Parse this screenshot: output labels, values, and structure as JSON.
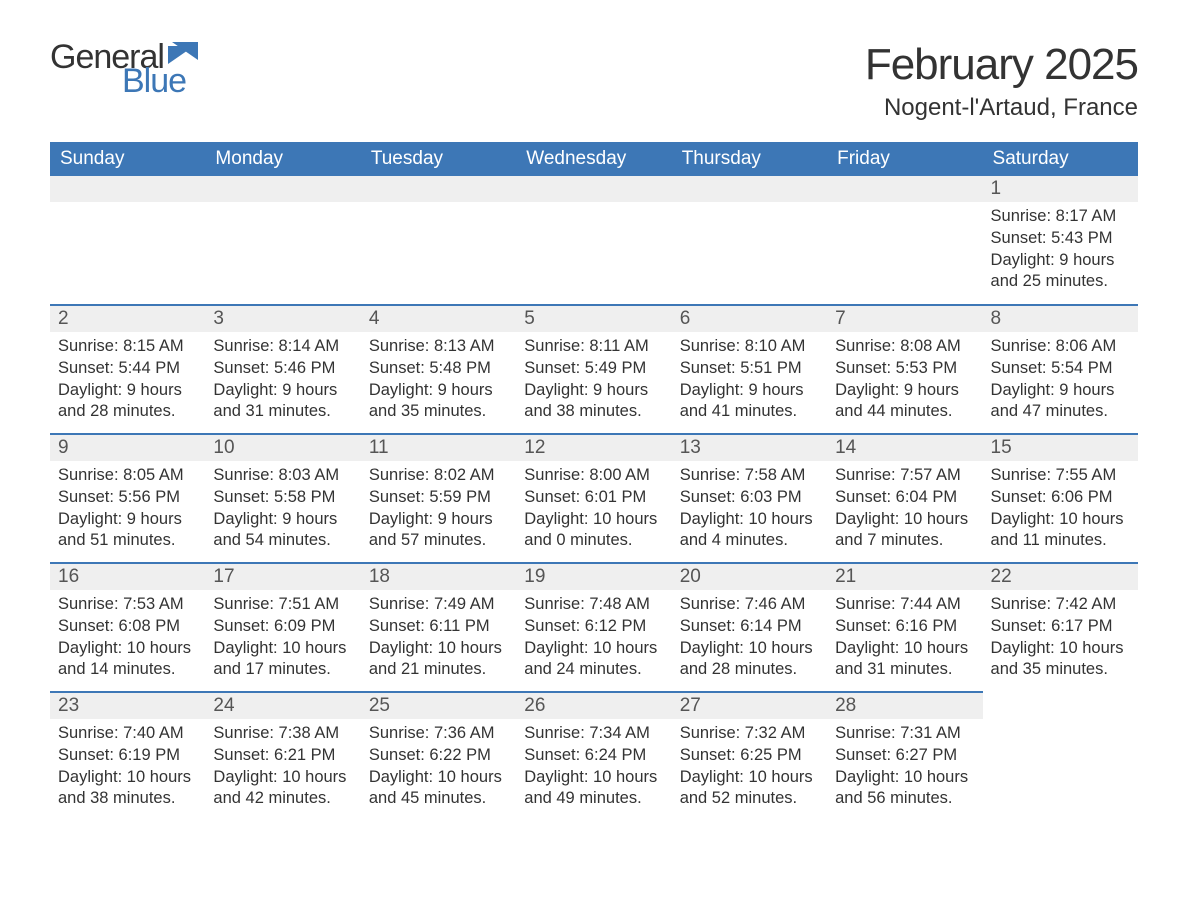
{
  "brand": {
    "general": "General",
    "blue": "Blue"
  },
  "header": {
    "month_title": "February 2025",
    "location": "Nogent-l'Artaud, France"
  },
  "colors": {
    "accent": "#3d77b6",
    "header_text": "#ffffff",
    "daynum_bg": "#efefef",
    "body_text": "#333333",
    "page_bg": "#ffffff"
  },
  "calendar": {
    "columns": [
      "Sunday",
      "Monday",
      "Tuesday",
      "Wednesday",
      "Thursday",
      "Friday",
      "Saturday"
    ],
    "first_row_gray_border": false,
    "weeks": [
      [
        null,
        null,
        null,
        null,
        null,
        null,
        {
          "n": "1",
          "sunrise": "8:17 AM",
          "sunset": "5:43 PM",
          "dl1": "Daylight: 9 hours",
          "dl2": "and 25 minutes."
        }
      ],
      [
        {
          "n": "2",
          "sunrise": "8:15 AM",
          "sunset": "5:44 PM",
          "dl1": "Daylight: 9 hours",
          "dl2": "and 28 minutes."
        },
        {
          "n": "3",
          "sunrise": "8:14 AM",
          "sunset": "5:46 PM",
          "dl1": "Daylight: 9 hours",
          "dl2": "and 31 minutes."
        },
        {
          "n": "4",
          "sunrise": "8:13 AM",
          "sunset": "5:48 PM",
          "dl1": "Daylight: 9 hours",
          "dl2": "and 35 minutes."
        },
        {
          "n": "5",
          "sunrise": "8:11 AM",
          "sunset": "5:49 PM",
          "dl1": "Daylight: 9 hours",
          "dl2": "and 38 minutes."
        },
        {
          "n": "6",
          "sunrise": "8:10 AM",
          "sunset": "5:51 PM",
          "dl1": "Daylight: 9 hours",
          "dl2": "and 41 minutes."
        },
        {
          "n": "7",
          "sunrise": "8:08 AM",
          "sunset": "5:53 PM",
          "dl1": "Daylight: 9 hours",
          "dl2": "and 44 minutes."
        },
        {
          "n": "8",
          "sunrise": "8:06 AM",
          "sunset": "5:54 PM",
          "dl1": "Daylight: 9 hours",
          "dl2": "and 47 minutes."
        }
      ],
      [
        {
          "n": "9",
          "sunrise": "8:05 AM",
          "sunset": "5:56 PM",
          "dl1": "Daylight: 9 hours",
          "dl2": "and 51 minutes."
        },
        {
          "n": "10",
          "sunrise": "8:03 AM",
          "sunset": "5:58 PM",
          "dl1": "Daylight: 9 hours",
          "dl2": "and 54 minutes."
        },
        {
          "n": "11",
          "sunrise": "8:02 AM",
          "sunset": "5:59 PM",
          "dl1": "Daylight: 9 hours",
          "dl2": "and 57 minutes."
        },
        {
          "n": "12",
          "sunrise": "8:00 AM",
          "sunset": "6:01 PM",
          "dl1": "Daylight: 10 hours",
          "dl2": "and 0 minutes."
        },
        {
          "n": "13",
          "sunrise": "7:58 AM",
          "sunset": "6:03 PM",
          "dl1": "Daylight: 10 hours",
          "dl2": "and 4 minutes."
        },
        {
          "n": "14",
          "sunrise": "7:57 AM",
          "sunset": "6:04 PM",
          "dl1": "Daylight: 10 hours",
          "dl2": "and 7 minutes."
        },
        {
          "n": "15",
          "sunrise": "7:55 AM",
          "sunset": "6:06 PM",
          "dl1": "Daylight: 10 hours",
          "dl2": "and 11 minutes."
        }
      ],
      [
        {
          "n": "16",
          "sunrise": "7:53 AM",
          "sunset": "6:08 PM",
          "dl1": "Daylight: 10 hours",
          "dl2": "and 14 minutes."
        },
        {
          "n": "17",
          "sunrise": "7:51 AM",
          "sunset": "6:09 PM",
          "dl1": "Daylight: 10 hours",
          "dl2": "and 17 minutes."
        },
        {
          "n": "18",
          "sunrise": "7:49 AM",
          "sunset": "6:11 PM",
          "dl1": "Daylight: 10 hours",
          "dl2": "and 21 minutes."
        },
        {
          "n": "19",
          "sunrise": "7:48 AM",
          "sunset": "6:12 PM",
          "dl1": "Daylight: 10 hours",
          "dl2": "and 24 minutes."
        },
        {
          "n": "20",
          "sunrise": "7:46 AM",
          "sunset": "6:14 PM",
          "dl1": "Daylight: 10 hours",
          "dl2": "and 28 minutes."
        },
        {
          "n": "21",
          "sunrise": "7:44 AM",
          "sunset": "6:16 PM",
          "dl1": "Daylight: 10 hours",
          "dl2": "and 31 minutes."
        },
        {
          "n": "22",
          "sunrise": "7:42 AM",
          "sunset": "6:17 PM",
          "dl1": "Daylight: 10 hours",
          "dl2": "and 35 minutes."
        }
      ],
      [
        {
          "n": "23",
          "sunrise": "7:40 AM",
          "sunset": "6:19 PM",
          "dl1": "Daylight: 10 hours",
          "dl2": "and 38 minutes."
        },
        {
          "n": "24",
          "sunrise": "7:38 AM",
          "sunset": "6:21 PM",
          "dl1": "Daylight: 10 hours",
          "dl2": "and 42 minutes."
        },
        {
          "n": "25",
          "sunrise": "7:36 AM",
          "sunset": "6:22 PM",
          "dl1": "Daylight: 10 hours",
          "dl2": "and 45 minutes."
        },
        {
          "n": "26",
          "sunrise": "7:34 AM",
          "sunset": "6:24 PM",
          "dl1": "Daylight: 10 hours",
          "dl2": "and 49 minutes."
        },
        {
          "n": "27",
          "sunrise": "7:32 AM",
          "sunset": "6:25 PM",
          "dl1": "Daylight: 10 hours",
          "dl2": "and 52 minutes."
        },
        {
          "n": "28",
          "sunrise": "7:31 AM",
          "sunset": "6:27 PM",
          "dl1": "Daylight: 10 hours",
          "dl2": "and 56 minutes."
        },
        null
      ]
    ],
    "labels": {
      "sunrise_prefix": "Sunrise: ",
      "sunset_prefix": "Sunset: "
    }
  },
  "typography": {
    "month_title_fontsize": 44,
    "location_fontsize": 24,
    "th_fontsize": 19,
    "daynum_fontsize": 19,
    "body_fontsize": 16.5
  }
}
